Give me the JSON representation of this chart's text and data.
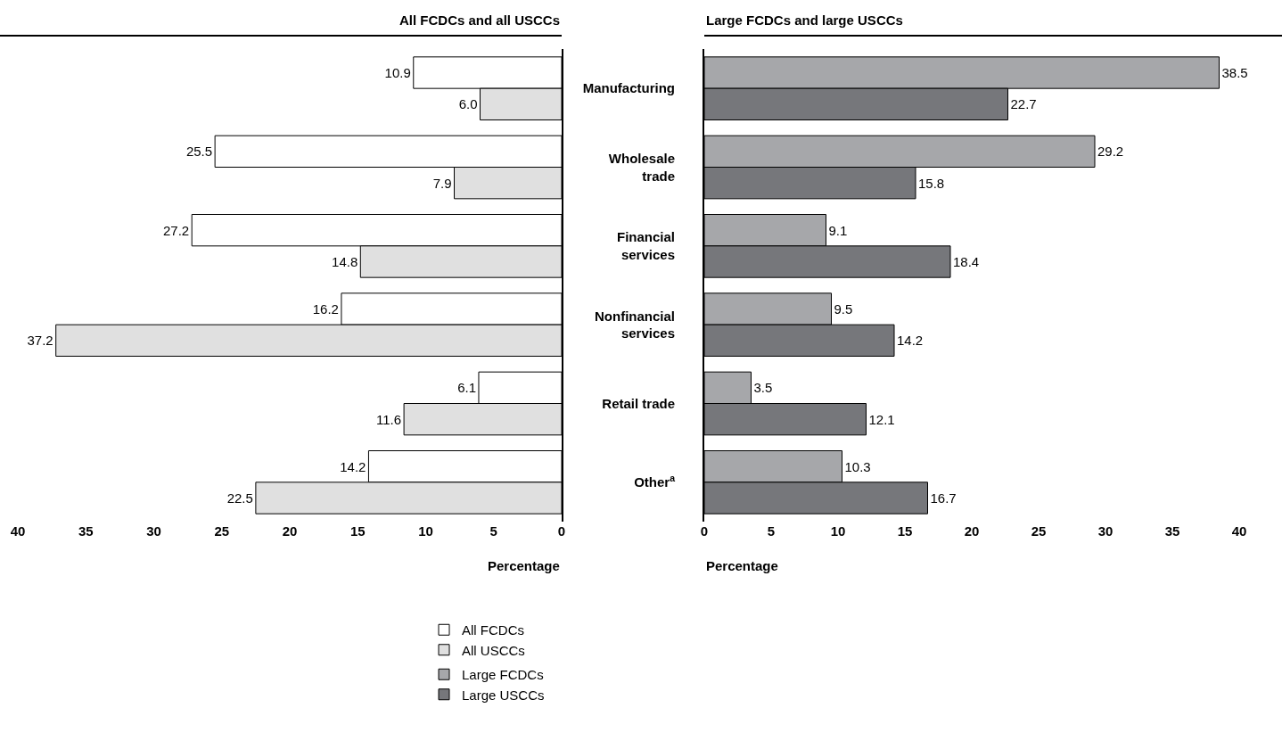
{
  "chart_data": [
    {
      "type": "bar",
      "orientation": "horizontal",
      "title": "All FCDCs and all USCCs",
      "xlabel": "Percentage",
      "categories": [
        null,
        null,
        null,
        null,
        null,
        null
      ],
      "xlim": [
        40,
        0
      ],
      "xticks": [
        40,
        35,
        30,
        25,
        20,
        15,
        10,
        5,
        0
      ],
      "tick_labels": "x",
      "grid": false,
      "legend": "bottom",
      "series": [
        {
          "name": "All FCDCs",
          "color": "#ffffff",
          "values": [
            10.9,
            25.5,
            27.2,
            16.2,
            6.1,
            14.2
          ],
          "value_labels": [
            "10.9",
            "25.5",
            "27.2",
            "16.2",
            "6.1",
            "14.2"
          ]
        },
        {
          "name": "All USCCs",
          "color": "#e0e0e0",
          "values": [
            6.0,
            7.9,
            14.8,
            37.2,
            11.6,
            22.5
          ],
          "value_labels": [
            "6.0",
            "7.9",
            "14.8",
            "37.2",
            "11.6",
            "22.5"
          ]
        }
      ]
    },
    {
      "type": "bar",
      "orientation": "horizontal",
      "title": "Large FCDCs and large USCCs",
      "xlabel": "Percentage",
      "categories": [
        "Manufacturing",
        "Wholesale trade",
        "Financial services",
        "Nonfinancial services",
        "Retail trade",
        "Other$^{a}$"
      ],
      "xlim": [
        0,
        40
      ],
      "xticks": [
        0,
        5,
        10,
        15,
        20,
        25,
        30,
        35,
        40
      ],
      "grid": false,
      "legend": "bottom",
      "series": [
        {
          "name": "Large FCDCs",
          "color": "#a6a7aa",
          "values": [
            38.5,
            29.2,
            9.1,
            9.5,
            3.5,
            10.3
          ],
          "value_labels": [
            "38.5",
            "29.2",
            "9.1",
            "9.5",
            "3.5",
            "10.3"
          ]
        },
        {
          "name": "Large USCCs",
          "color": "#76777b",
          "values": [
            22.7,
            15.8,
            18.4,
            14.2,
            12.1,
            16.7
          ],
          "value_labels": [
            "22.7",
            "15.8",
            "18.4",
            "14.2",
            "12.1",
            "16.7"
          ]
        }
      ]
    }
  ]
}
